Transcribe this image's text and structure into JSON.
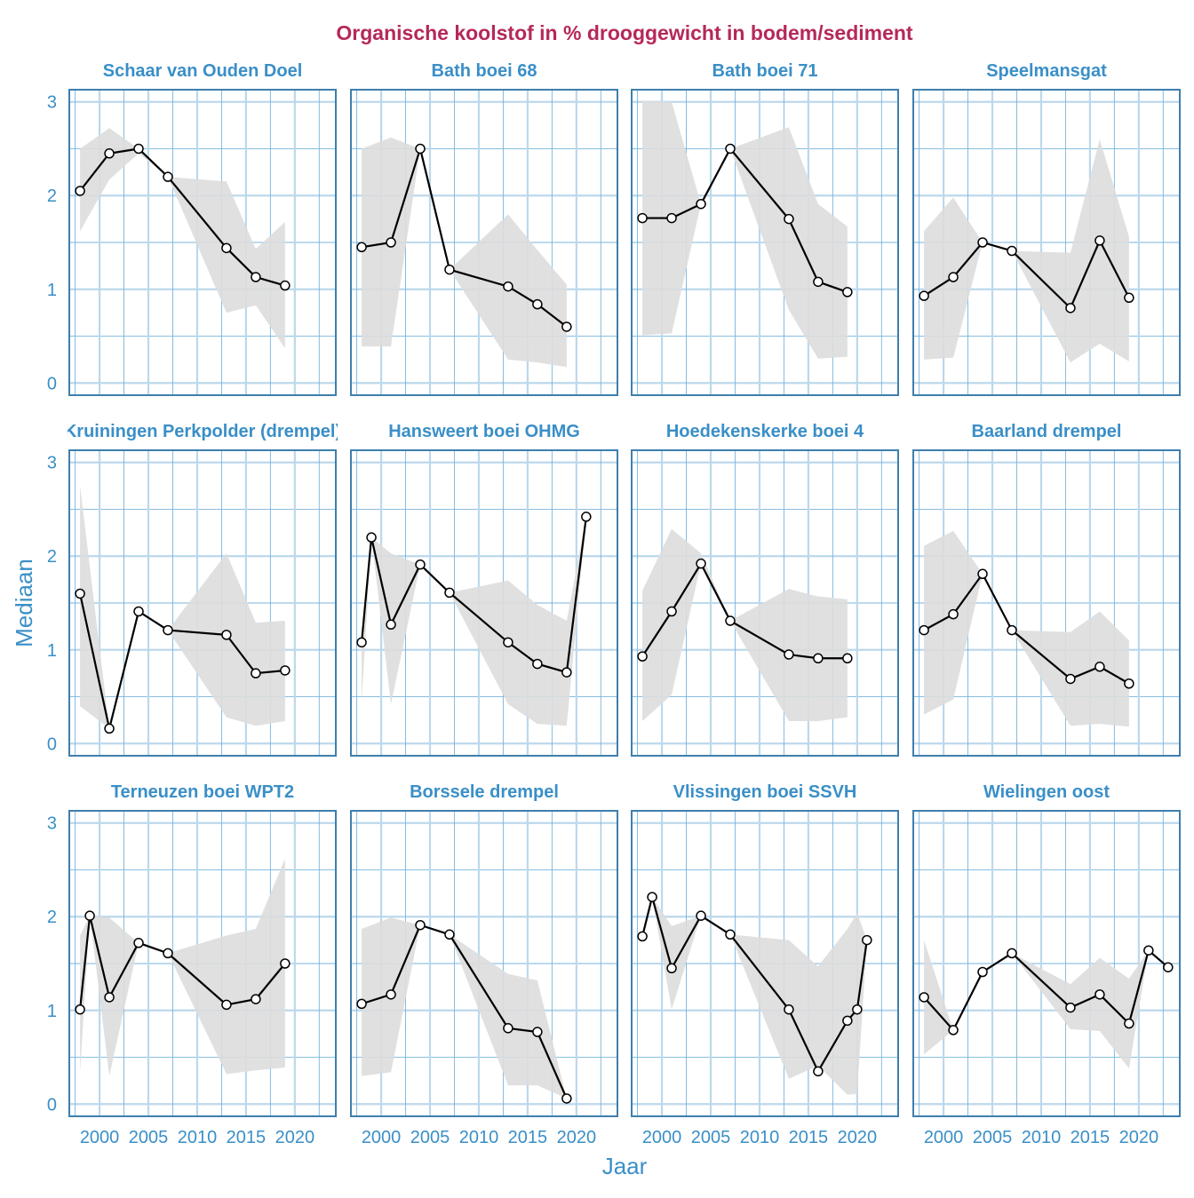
{
  "chart_data": {
    "type": "line",
    "title": "Organische koolstof in % drooggewicht in bodem/sediment",
    "xlabel": "Jaar",
    "ylabel": "Mediaan",
    "xlim": [
      1996.9,
      2024.2
    ],
    "ylim": [
      -0.13,
      3.13
    ],
    "x_ticks": [
      2000,
      2005,
      2010,
      2015,
      2020
    ],
    "y_ticks": [
      0,
      1,
      2,
      3
    ],
    "grid": true,
    "ribbon": "range band around median",
    "colors": {
      "title": "#b5285a",
      "strip": "#3a8fc7",
      "axis_text": "#3a8fc7",
      "frame": "#3e7fad",
      "grid_minor": "#78b4de",
      "grid_major": "#bcd8ec",
      "ribbon": "#dddddd",
      "line": "#000000"
    },
    "panels": [
      {
        "title": "Schaar van Ouden Doel",
        "x": [
          1998,
          2001,
          2004,
          2007,
          2013,
          2016,
          2019
        ],
        "median": [
          2.05,
          2.45,
          2.5,
          2.2,
          1.44,
          1.13,
          1.04
        ],
        "upper": [
          2.5,
          2.72,
          2.5,
          2.2,
          2.15,
          1.43,
          1.72
        ],
        "lower": [
          1.62,
          2.17,
          2.45,
          2.2,
          0.75,
          0.83,
          0.37
        ]
      },
      {
        "title": "Bath boei 68",
        "x": [
          1998,
          2001,
          2004,
          2007,
          2013,
          2016,
          2019
        ],
        "median": [
          1.45,
          1.5,
          2.5,
          1.21,
          1.03,
          0.84,
          0.6
        ],
        "upper": [
          2.5,
          2.62,
          2.5,
          1.21,
          1.8,
          1.42,
          1.05
        ],
        "lower": [
          0.39,
          0.39,
          2.5,
          1.21,
          0.25,
          0.22,
          0.17
        ]
      },
      {
        "title": "Bath boei 71",
        "x": [
          1998,
          2001,
          2004,
          2007,
          2013,
          2016,
          2019
        ],
        "median": [
          1.76,
          1.76,
          1.91,
          2.5,
          1.75,
          1.08,
          0.97
        ],
        "upper": [
          3.01,
          3.0,
          1.91,
          2.5,
          2.73,
          1.91,
          1.67
        ],
        "lower": [
          0.51,
          0.53,
          1.91,
          2.5,
          0.78,
          0.26,
          0.28
        ]
      },
      {
        "title": "Speelmansgat",
        "x": [
          1998,
          2001,
          2004,
          2007,
          2013,
          2016,
          2019
        ],
        "median": [
          0.93,
          1.13,
          1.5,
          1.41,
          0.8,
          1.52,
          0.91
        ],
        "upper": [
          1.62,
          1.98,
          1.5,
          1.41,
          1.39,
          2.6,
          1.56
        ],
        "lower": [
          0.25,
          0.27,
          1.5,
          1.41,
          0.22,
          0.42,
          0.23
        ]
      },
      {
        "title": "Kruiningen Perkpolder (drempel)",
        "x": [
          1998,
          2001,
          2004,
          2007,
          2013,
          2016,
          2019
        ],
        "median": [
          1.6,
          0.16,
          1.41,
          1.21,
          1.16,
          0.75,
          0.78
        ],
        "upper": [
          2.75,
          0.16,
          1.41,
          1.21,
          2.03,
          1.29,
          1.31
        ],
        "lower": [
          0.4,
          0.16,
          1.41,
          1.21,
          0.28,
          0.19,
          0.24
        ]
      },
      {
        "title": "Hansweert boei OHMG",
        "x": [
          1998,
          1999,
          2001,
          2004,
          2007,
          2013,
          2016,
          2019,
          2021
        ],
        "median": [
          1.08,
          2.2,
          1.27,
          1.91,
          1.61,
          1.08,
          0.85,
          0.76,
          2.42
        ],
        "upper": [
          1.08,
          2.2,
          2.03,
          1.91,
          1.61,
          1.74,
          1.48,
          1.31,
          2.42
        ],
        "lower": [
          0.45,
          2.2,
          0.42,
          1.91,
          1.61,
          0.42,
          0.21,
          0.19,
          2.42
        ]
      },
      {
        "title": "Hoedekenskerke boei 4",
        "x": [
          1998,
          2001,
          2004,
          2007,
          2013,
          2016,
          2019
        ],
        "median": [
          0.93,
          1.41,
          1.92,
          1.31,
          0.95,
          0.91,
          0.91
        ],
        "upper": [
          1.63,
          2.29,
          2.03,
          1.31,
          1.65,
          1.57,
          1.54
        ],
        "lower": [
          0.24,
          0.52,
          1.92,
          1.31,
          0.24,
          0.24,
          0.28
        ]
      },
      {
        "title": "Baarland drempel",
        "x": [
          1998,
          2001,
          2004,
          2007,
          2013,
          2016,
          2019
        ],
        "median": [
          1.21,
          1.38,
          1.81,
          1.21,
          0.69,
          0.82,
          0.64
        ],
        "upper": [
          2.11,
          2.27,
          1.81,
          1.21,
          1.19,
          1.41,
          1.1
        ],
        "lower": [
          0.31,
          0.47,
          1.81,
          1.21,
          0.19,
          0.21,
          0.18
        ]
      },
      {
        "title": "Terneuzen boei WPT2",
        "x": [
          1998,
          1999,
          2001,
          2004,
          2007,
          2013,
          2016,
          2019
        ],
        "median": [
          1.01,
          2.01,
          1.14,
          1.72,
          1.61,
          1.06,
          1.12,
          1.5
        ],
        "upper": [
          1.8,
          2.01,
          1.99,
          1.72,
          1.61,
          1.8,
          1.87,
          2.62
        ],
        "lower": [
          0.34,
          2.01,
          0.3,
          1.72,
          1.61,
          0.32,
          0.36,
          0.39
        ]
      },
      {
        "title": "Borssele drempel",
        "x": [
          1998,
          2001,
          2004,
          2007,
          2013,
          2016,
          2019
        ],
        "median": [
          1.07,
          1.17,
          1.91,
          1.81,
          0.81,
          0.77,
          0.06
        ],
        "upper": [
          1.87,
          1.99,
          1.91,
          1.81,
          1.39,
          1.32,
          0.06
        ],
        "lower": [
          0.3,
          0.34,
          1.91,
          1.81,
          0.2,
          0.2,
          0.06
        ]
      },
      {
        "title": "Vlissingen boei SSVH",
        "x": [
          1998,
          1999,
          2001,
          2004,
          2007,
          2013,
          2016,
          2019,
          2020,
          2021
        ],
        "median": [
          1.79,
          2.21,
          1.45,
          2.01,
          1.81,
          1.01,
          0.35,
          0.89,
          1.01,
          1.75
        ],
        "upper": [
          1.79,
          2.21,
          1.9,
          2.01,
          1.81,
          1.75,
          1.47,
          1.87,
          2.04,
          1.75
        ],
        "lower": [
          1.79,
          2.21,
          1.01,
          2.01,
          1.81,
          0.27,
          0.41,
          0.1,
          0.11,
          1.75
        ]
      },
      {
        "title": "Wielingen oost",
        "x": [
          1998,
          2001,
          2004,
          2007,
          2013,
          2016,
          2019,
          2021,
          2023
        ],
        "median": [
          1.14,
          0.79,
          1.41,
          1.61,
          1.03,
          1.17,
          0.86,
          1.64,
          1.46
        ],
        "upper": [
          1.75,
          0.79,
          1.41,
          1.61,
          1.28,
          1.56,
          1.34,
          1.64,
          1.46
        ],
        "lower": [
          0.53,
          0.79,
          1.41,
          1.61,
          0.8,
          0.78,
          0.38,
          1.64,
          1.46
        ]
      }
    ]
  }
}
